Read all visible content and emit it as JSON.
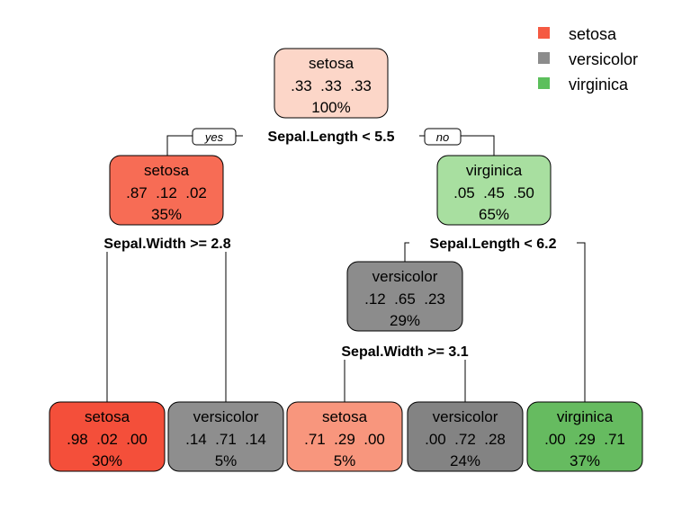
{
  "colors": {
    "setosa": "#f55a42",
    "versicolor": "#8c8c8c",
    "virginica": "#5cbf5c"
  },
  "legend": [
    {
      "label": "setosa",
      "color": "#f55a42"
    },
    {
      "label": "versicolor",
      "color": "#8c8c8c"
    },
    {
      "label": "virginica",
      "color": "#5cbf5c"
    }
  ],
  "branch_labels": {
    "yes": "yes",
    "no": "no"
  },
  "splits": {
    "root": "Sepal.Length < 5.5",
    "left": "Sepal.Width >= 2.8",
    "right": "Sepal.Length < 6.2",
    "right_left": "Sepal.Width >= 3.1"
  },
  "nodes": [
    {
      "id": "root",
      "class": "setosa",
      "probs": ".33  .33  .33",
      "pct": "100%",
      "fill": "#fcd6c8"
    },
    {
      "id": "n2",
      "class": "setosa",
      "probs": ".87  .12  .02",
      "pct": "35%",
      "fill": "#f76c55"
    },
    {
      "id": "n3",
      "class": "virginica",
      "probs": ".05  .45  .50",
      "pct": "65%",
      "fill": "#a8dfa0"
    },
    {
      "id": "n6",
      "class": "versicolor",
      "probs": ".12  .65  .23",
      "pct": "29%",
      "fill": "#8c8c8c"
    },
    {
      "id": "leaf4",
      "class": "setosa",
      "probs": ".98  .02  .00",
      "pct": "30%",
      "fill": "#f44f3a"
    },
    {
      "id": "leaf5",
      "class": "versicolor",
      "probs": ".14  .71  .14",
      "pct": "5%",
      "fill": "#8e8e8e"
    },
    {
      "id": "leaf12",
      "class": "setosa",
      "probs": ".71  .29  .00",
      "pct": "5%",
      "fill": "#f8967d"
    },
    {
      "id": "leaf13",
      "class": "versicolor",
      "probs": ".00  .72  .28",
      "pct": "24%",
      "fill": "#838383"
    },
    {
      "id": "leaf7",
      "class": "virginica",
      "probs": ".00  .29  .71",
      "pct": "37%",
      "fill": "#66bb60"
    }
  ]
}
